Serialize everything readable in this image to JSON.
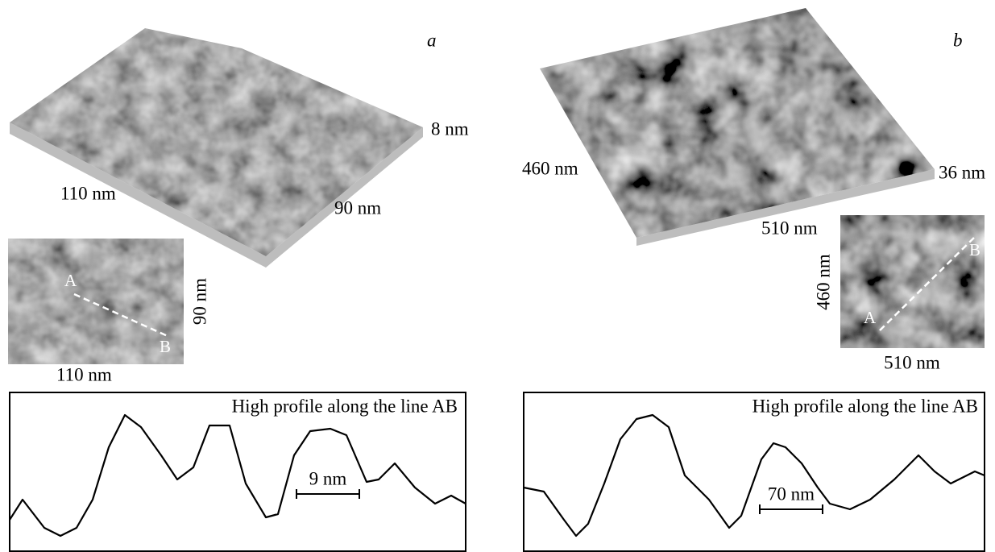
{
  "panels": [
    {
      "letter": "a",
      "surface": {
        "height": "8 nm",
        "width": "110 nm",
        "depth": "90 nm"
      },
      "map": {
        "x": "110 nm",
        "y": "90 nm",
        "start": "A",
        "end": "B"
      },
      "profile": {
        "title": "High profile along the line AB",
        "scale": "9 nm"
      }
    },
    {
      "letter": "b",
      "surface": {
        "height": "36 nm",
        "width": "510 nm",
        "depth": "460 nm"
      },
      "map": {
        "x": "510 nm",
        "y": "460 nm",
        "start": "A",
        "end": "B"
      },
      "profile": {
        "title": "High profile along the line AB",
        "scale": "70 nm"
      }
    }
  ]
}
